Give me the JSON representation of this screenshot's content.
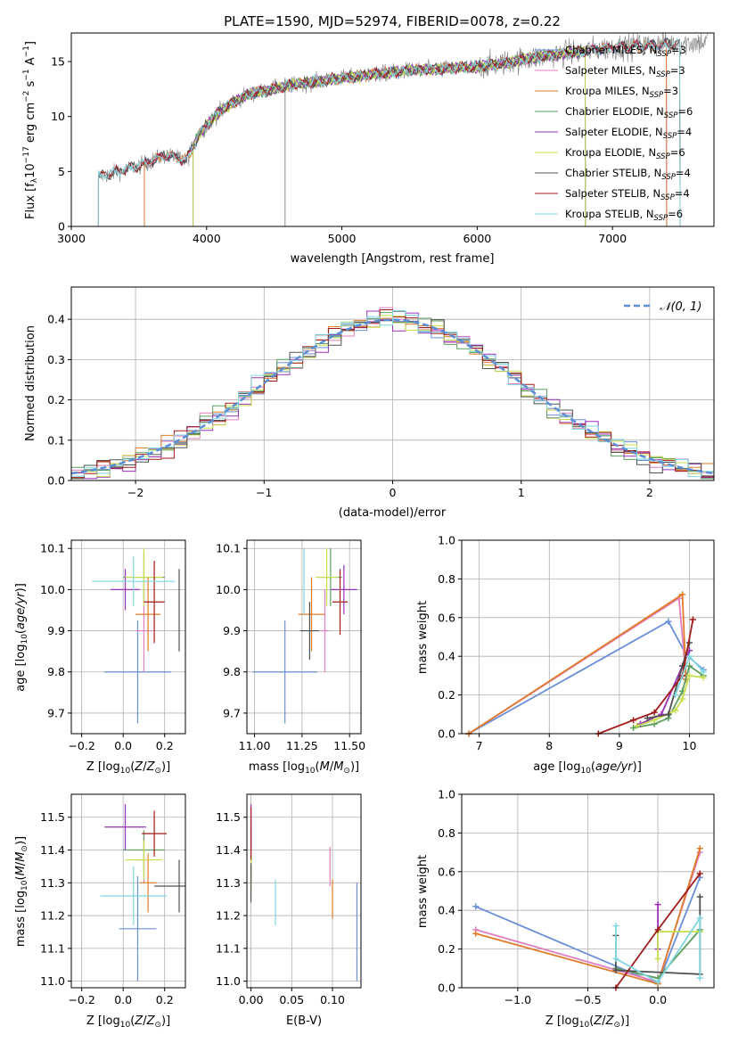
{
  "chart_data": [
    {
      "id": "spectrum",
      "type": "line",
      "title": "PLATE=1590, MJD=52974, FIBERID=0078, z=0.22",
      "xlabel": "wavelength [Angstrom, rest frame]",
      "ylabel": "Flux [f_λ10^-17 erg cm^-2 s^-1 A^-1]",
      "xlim": [
        3000,
        7750
      ],
      "ylim": [
        0,
        17.6
      ],
      "xticks": [
        3000,
        4000,
        5000,
        6000,
        7000
      ],
      "yticks": [
        0,
        5,
        10,
        15
      ],
      "grid": false,
      "legend_position": "upper-right",
      "observed": {
        "color": "#808080",
        "x_range": [
          3200,
          7700
        ],
        "continuum": [
          [
            3200,
            4.5
          ],
          [
            3500,
            5.5
          ],
          [
            3700,
            6.5
          ],
          [
            3850,
            6.0
          ],
          [
            3950,
            8.5
          ],
          [
            4100,
            10.5
          ],
          [
            4300,
            12.0
          ],
          [
            4600,
            12.8
          ],
          [
            5000,
            13.5
          ],
          [
            5500,
            14.2
          ],
          [
            6000,
            14.5
          ],
          [
            6500,
            15.5
          ],
          [
            7000,
            16.3
          ],
          [
            7700,
            16.8
          ]
        ]
      },
      "series": [
        {
          "name": "Chabrier MILES, N_SSP=3",
          "color": "#6a8fd8",
          "x_start": 3540,
          "x_end": 7400
        },
        {
          "name": "Salpeter MILES, N_SSP=3",
          "color": "#e07fbf",
          "x_start": 3540,
          "x_end": 7400
        },
        {
          "name": "Kroupa MILES, N_SSP=3",
          "color": "#e07b2a",
          "x_start": 3540,
          "x_end": 7400
        },
        {
          "name": "Chabrier ELODIE, N_SSP=6",
          "color": "#5f9e5f",
          "x_start": 3900,
          "x_end": 6800
        },
        {
          "name": "Salpeter ELODIE, N_SSP=4",
          "color": "#9b30b9",
          "x_start": 3900,
          "x_end": 6800
        },
        {
          "name": "Kroupa ELODIE, N_SSP=6",
          "color": "#c5e04a",
          "x_start": 3900,
          "x_end": 6800
        },
        {
          "name": "Chabrier STELIB, N_SSP=4",
          "color": "#505050",
          "x_start": 3200,
          "x_end": 7500
        },
        {
          "name": "Salpeter STELIB, N_SSP=4",
          "color": "#a01a1a",
          "x_start": 3200,
          "x_end": 7500
        },
        {
          "name": "Kroupa STELIB, N_SSP=6",
          "color": "#7fd7e0",
          "x_start": 3200,
          "x_end": 7500
        }
      ]
    },
    {
      "id": "residuals",
      "type": "line",
      "xlabel": "(data-model)/error",
      "ylabel": "Normed distribution",
      "xlim": [
        -2.5,
        2.5
      ],
      "ylim": [
        0,
        0.48
      ],
      "xticks": [
        -2,
        -1,
        0,
        1,
        2
      ],
      "yticks": [
        0.0,
        0.1,
        0.2,
        0.3,
        0.4
      ],
      "grid": true,
      "legend_position": "upper-right",
      "gaussian": {
        "name": "N(0,1)",
        "color": "#5b8ed6",
        "mu": 0,
        "sigma": 1
      },
      "histograms": {
        "bin_width": 0.1,
        "count": 9
      }
    },
    {
      "id": "age_vs_Z",
      "type": "scatter",
      "xlabel": "Z [log10(Z/Z⊙)]",
      "ylabel": "age [log10(age/yr)]",
      "xlim": [
        -0.25,
        0.3
      ],
      "ylim": [
        9.65,
        10.12
      ],
      "xticks": [
        -0.2,
        0.0,
        0.2
      ],
      "yticks": [
        9.7,
        9.8,
        9.9,
        10.0,
        10.1
      ],
      "grid": true,
      "points": [
        {
          "color": "#6a8fd8",
          "x": 0.07,
          "y": 9.8,
          "xerr": 0.16,
          "yerr": 0.125
        },
        {
          "color": "#e07fbf",
          "x": 0.1,
          "y": 9.9,
          "xerr": 0.04,
          "yerr": 0.1
        },
        {
          "color": "#e07b2a",
          "x": 0.12,
          "y": 9.94,
          "xerr": 0.06,
          "yerr": 0.09
        },
        {
          "color": "#5f9e5f",
          "x": 0.1,
          "y": 10.03,
          "xerr": 0.1,
          "yerr": 0.06
        },
        {
          "color": "#9b30b9",
          "x": 0.01,
          "y": 10.0,
          "xerr": 0.07,
          "yerr": 0.05
        },
        {
          "color": "#c5e04a",
          "x": 0.1,
          "y": 10.03,
          "xerr": 0.09,
          "yerr": 0.07
        },
        {
          "color": "#505050",
          "x": 0.27,
          "y": 9.95,
          "xerr": 0.0,
          "yerr": 0.1
        },
        {
          "color": "#a01a1a",
          "x": 0.15,
          "y": 9.97,
          "xerr": 0.05,
          "yerr": 0.1
        },
        {
          "color": "#7fd7e0",
          "x": 0.05,
          "y": 10.02,
          "xerr": 0.2,
          "yerr": 0.06
        }
      ]
    },
    {
      "id": "age_vs_mass",
      "type": "scatter",
      "xlabel": "mass [log10(M/M⊙)]",
      "ylabel": "",
      "xlim": [
        10.96,
        11.56
      ],
      "ylim": [
        9.65,
        10.12
      ],
      "xticks": [
        11.0,
        11.25,
        11.5
      ],
      "yticks": [
        9.7,
        9.8,
        9.9,
        10.0,
        10.1
      ],
      "grid": true,
      "points": [
        {
          "color": "#6a8fd8",
          "x": 11.16,
          "y": 9.8,
          "xerr": 0.17,
          "yerr": 0.125
        },
        {
          "color": "#e07fbf",
          "x": 11.37,
          "y": 9.9,
          "xerr": 0.02,
          "yerr": 0.1
        },
        {
          "color": "#e07b2a",
          "x": 11.3,
          "y": 9.94,
          "xerr": 0.07,
          "yerr": 0.09
        },
        {
          "color": "#5f9e5f",
          "x": 11.4,
          "y": 10.03,
          "xerr": 0.06,
          "yerr": 0.07
        },
        {
          "color": "#9b30b9",
          "x": 11.47,
          "y": 10.0,
          "xerr": 0.07,
          "yerr": 0.06
        },
        {
          "color": "#c5e04a",
          "x": 11.38,
          "y": 10.03,
          "xerr": 0.06,
          "yerr": 0.07
        },
        {
          "color": "#505050",
          "x": 11.29,
          "y": 9.9,
          "xerr": 0.05,
          "yerr": 0.07
        },
        {
          "color": "#a01a1a",
          "x": 11.45,
          "y": 9.97,
          "xerr": 0.04,
          "yerr": 0.08
        },
        {
          "color": "#7fd7e0",
          "x": 11.26,
          "y": 10.02,
          "xerr": 0.0,
          "yerr": 0.08
        }
      ]
    },
    {
      "id": "mass_weight_vs_age",
      "type": "line",
      "xlabel": "age [log10(age/yr)]",
      "ylabel": "mass weight",
      "xlim": [
        6.75,
        10.35
      ],
      "ylim": [
        0,
        1.0
      ],
      "xticks": [
        7,
        8,
        9,
        10
      ],
      "yticks": [
        0.0,
        0.2,
        0.4,
        0.6,
        0.8,
        1.0
      ],
      "grid": true,
      "series": [
        {
          "color": "#6a8fd8",
          "points": [
            [
              6.85,
              0.0
            ],
            [
              9.7,
              0.58
            ],
            [
              9.95,
              0.41
            ],
            [
              10.2,
              0.33
            ]
          ]
        },
        {
          "color": "#e07fbf",
          "points": [
            [
              6.85,
              0.0
            ],
            [
              9.85,
              0.7
            ],
            [
              9.95,
              0.3
            ]
          ]
        },
        {
          "color": "#e07b2a",
          "points": [
            [
              6.85,
              0.0
            ],
            [
              9.9,
              0.72
            ],
            [
              9.95,
              0.28
            ]
          ]
        },
        {
          "color": "#5f9e5f",
          "points": [
            [
              9.2,
              0.03
            ],
            [
              9.5,
              0.05
            ],
            [
              9.7,
              0.08
            ],
            [
              9.9,
              0.22
            ],
            [
              10.0,
              0.35
            ],
            [
              10.2,
              0.3
            ]
          ]
        },
        {
          "color": "#9b30b9",
          "points": [
            [
              9.3,
              0.05
            ],
            [
              9.6,
              0.1
            ],
            [
              9.9,
              0.35
            ],
            [
              10.0,
              0.43
            ]
          ]
        },
        {
          "color": "#c5e04a",
          "points": [
            [
              9.25,
              0.04
            ],
            [
              9.5,
              0.07
            ],
            [
              9.8,
              0.12
            ],
            [
              9.9,
              0.18
            ],
            [
              10.0,
              0.3
            ],
            [
              10.2,
              0.29
            ]
          ]
        },
        {
          "color": "#505050",
          "points": [
            [
              9.4,
              0.08
            ],
            [
              9.7,
              0.1
            ],
            [
              9.9,
              0.35
            ],
            [
              10.0,
              0.47
            ]
          ]
        },
        {
          "color": "#a01a1a",
          "points": [
            [
              8.7,
              0.0
            ],
            [
              9.2,
              0.07
            ],
            [
              9.5,
              0.11
            ],
            [
              9.9,
              0.3
            ],
            [
              10.05,
              0.59
            ]
          ]
        },
        {
          "color": "#7fd7e0",
          "points": [
            [
              9.8,
              0.2
            ],
            [
              10.0,
              0.4
            ],
            [
              10.2,
              0.32
            ]
          ]
        }
      ]
    },
    {
      "id": "mass_vs_Z",
      "type": "scatter",
      "xlabel": "Z [log10(Z/Z⊙)]",
      "ylabel": "mass [log10(M/M⊙)]",
      "xlim": [
        -0.25,
        0.3
      ],
      "ylim": [
        10.98,
        11.57
      ],
      "xticks": [
        -0.2,
        0.0,
        0.2
      ],
      "yticks": [
        11.0,
        11.1,
        11.2,
        11.3,
        11.4,
        11.5
      ],
      "grid": true,
      "points": [
        {
          "color": "#6a8fd8",
          "x": 0.07,
          "y": 11.16,
          "xerr": 0.09,
          "yerr": 0.16
        },
        {
          "color": "#e07fbf",
          "x": 0.1,
          "y": 11.37,
          "xerr": 0.04,
          "yerr": 0.07
        },
        {
          "color": "#e07b2a",
          "x": 0.12,
          "y": 11.3,
          "xerr": 0.04,
          "yerr": 0.09
        },
        {
          "color": "#5f9e5f",
          "x": 0.1,
          "y": 11.4,
          "xerr": 0.1,
          "yerr": 0.06
        },
        {
          "color": "#9b30b9",
          "x": 0.01,
          "y": 11.47,
          "xerr": 0.1,
          "yerr": 0.07
        },
        {
          "color": "#c5e04a",
          "x": 0.1,
          "y": 11.37,
          "xerr": 0.09,
          "yerr": 0.06
        },
        {
          "color": "#505050",
          "x": 0.27,
          "y": 11.29,
          "xerr": 0.12,
          "yerr": 0.08
        },
        {
          "color": "#a01a1a",
          "x": 0.15,
          "y": 11.45,
          "xerr": 0.06,
          "yerr": 0.07
        },
        {
          "color": "#7fd7e0",
          "x": 0.05,
          "y": 11.26,
          "xerr": 0.16,
          "yerr": 0.09
        }
      ]
    },
    {
      "id": "mass_vs_EBV",
      "type": "scatter",
      "xlabel": "E(B-V)",
      "ylabel": "",
      "xlim": [
        -0.005,
        0.135
      ],
      "ylim": [
        10.98,
        11.57
      ],
      "xticks": [
        0.0,
        0.05,
        0.1
      ],
      "yticks": [
        11.0,
        11.1,
        11.2,
        11.3,
        11.4,
        11.5
      ],
      "grid": true,
      "points": [
        {
          "color": "#6a8fd8",
          "x": 0.13,
          "y": 11.15,
          "xerr": 0,
          "yerr": 0.15
        },
        {
          "color": "#e07fbf",
          "x": 0.097,
          "y": 11.35,
          "xerr": 0,
          "yerr": 0.06
        },
        {
          "color": "#e07b2a",
          "x": 0.1,
          "y": 11.25,
          "xerr": 0,
          "yerr": 0.06
        },
        {
          "color": "#5f9e5f",
          "x": 0.0,
          "y": 11.38,
          "xerr": 0,
          "yerr": 0.08
        },
        {
          "color": "#9b30b9",
          "x": 0.0,
          "y": 11.47,
          "xerr": 0,
          "yerr": 0.07
        },
        {
          "color": "#c5e04a",
          "x": 0.0,
          "y": 11.33,
          "xerr": 0,
          "yerr": 0.06
        },
        {
          "color": "#505050",
          "x": 0.0,
          "y": 11.3,
          "xerr": 0,
          "yerr": 0.06
        },
        {
          "color": "#a01a1a",
          "x": 0.0,
          "y": 11.45,
          "xerr": 0,
          "yerr": 0.08
        },
        {
          "color": "#7fd7e0",
          "x": 0.03,
          "y": 11.24,
          "xerr": 0,
          "yerr": 0.07
        }
      ]
    },
    {
      "id": "mass_weight_vs_Z",
      "type": "line",
      "xlabel": "Z [log10(Z/Z⊙)]",
      "ylabel": "mass weight",
      "xlim": [
        -1.4,
        0.4
      ],
      "ylim": [
        0,
        1.0
      ],
      "xticks": [
        -1.0,
        -0.5,
        0.0
      ],
      "yticks": [
        0.0,
        0.2,
        0.4,
        0.6,
        0.8,
        1.0
      ],
      "grid": true,
      "series": [
        {
          "color": "#6a8fd8",
          "points": [
            [
              -1.3,
              0.42
            ],
            [
              0.0,
              0.02
            ],
            [
              0.3,
              0.57
            ]
          ]
        },
        {
          "color": "#e07fbf",
          "points": [
            [
              -1.3,
              0.3
            ],
            [
              0.0,
              0.03
            ],
            [
              0.3,
              0.7
            ]
          ]
        },
        {
          "color": "#e07b2a",
          "points": [
            [
              -1.3,
              0.28
            ],
            [
              0.0,
              0.02
            ],
            [
              0.3,
              0.72
            ]
          ]
        },
        {
          "color": "#5f9e5f",
          "points": [
            [
              -0.3,
              0.1
            ],
            [
              0.0,
              0.05
            ],
            [
              0.3,
              0.3
            ]
          ]
        },
        {
          "color": "#9b30b9",
          "points": [
            [
              0.0,
              0.43
            ],
            [
              0.0,
              0.2
            ]
          ]
        },
        {
          "color": "#c5e04a",
          "points": [
            [
              0.0,
              0.15
            ],
            [
              0.0,
              0.29
            ],
            [
              0.3,
              0.29
            ]
          ]
        },
        {
          "color": "#505050",
          "points": [
            [
              -0.3,
              0.27
            ],
            [
              -0.3,
              0.09
            ],
            [
              0.3,
              0.07
            ],
            [
              0.3,
              0.47
            ]
          ]
        },
        {
          "color": "#a01a1a",
          "points": [
            [
              -0.3,
              0.0
            ],
            [
              0.0,
              0.3
            ],
            [
              0.3,
              0.59
            ]
          ]
        },
        {
          "color": "#7fd7e0",
          "points": [
            [
              -0.3,
              0.32
            ],
            [
              -0.3,
              0.15
            ],
            [
              0.0,
              0.03
            ],
            [
              0.3,
              0.36
            ],
            [
              0.3,
              0.05
            ]
          ]
        }
      ]
    }
  ]
}
